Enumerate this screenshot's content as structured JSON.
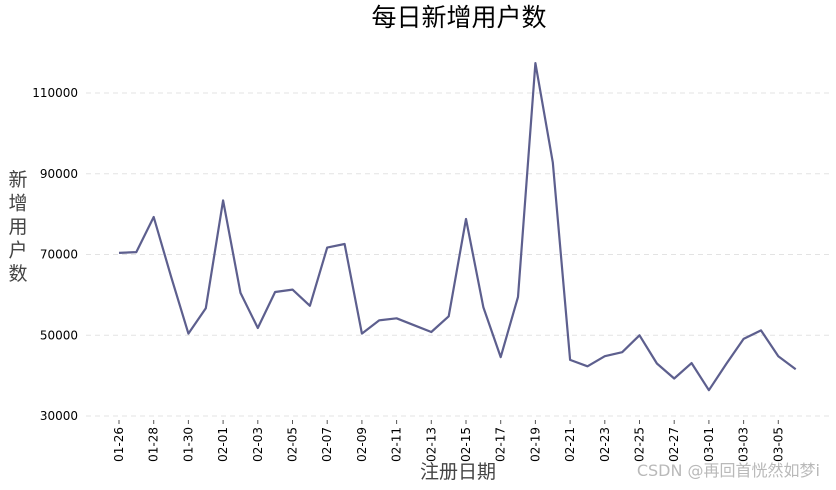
{
  "chart_data": {
    "type": "line",
    "title": "每日新增用户数",
    "xlabel": "注册日期",
    "ylabel": "新增用户数",
    "ylim": [
      28000,
      120000
    ],
    "yticks": [
      30000,
      50000,
      70000,
      90000,
      110000
    ],
    "grid": "horizontal-dashed",
    "line_color": "#5d5f8e",
    "x": [
      "01-26",
      "01-27",
      "01-28",
      "01-29",
      "01-30",
      "01-31",
      "02-01",
      "02-02",
      "02-03",
      "02-04",
      "02-05",
      "02-06",
      "02-07",
      "02-08",
      "02-09",
      "02-10",
      "02-11",
      "02-12",
      "02-13",
      "02-14",
      "02-15",
      "02-16",
      "02-17",
      "02-18",
      "02-19",
      "02-20",
      "02-21",
      "02-22",
      "02-23",
      "02-24",
      "02-25",
      "02-26",
      "02-27",
      "02-28",
      "03-01",
      "03-02",
      "03-03",
      "03-04",
      "03-05",
      "03-06"
    ],
    "xtick_labels": [
      "01-26",
      "01-28",
      "01-30",
      "02-01",
      "02-03",
      "02-05",
      "02-07",
      "02-09",
      "02-11",
      "02-13",
      "02-15",
      "02-17",
      "02-19",
      "02-21",
      "02-23",
      "02-25",
      "02-27",
      "03-01",
      "03-03",
      "03-05"
    ],
    "values": [
      70400,
      70600,
      79300,
      64500,
      50400,
      56700,
      83400,
      60500,
      51800,
      60700,
      61300,
      57300,
      71700,
      72600,
      50400,
      53700,
      54200,
      52500,
      50800,
      54700,
      78800,
      56900,
      44600,
      59500,
      117400,
      92800,
      43900,
      42300,
      44800,
      45800,
      50000,
      43000,
      39300,
      43100,
      36400,
      42900,
      49100,
      51200,
      44800,
      41600
    ]
  },
  "watermark": "CSDN @再回首恍然如梦i"
}
